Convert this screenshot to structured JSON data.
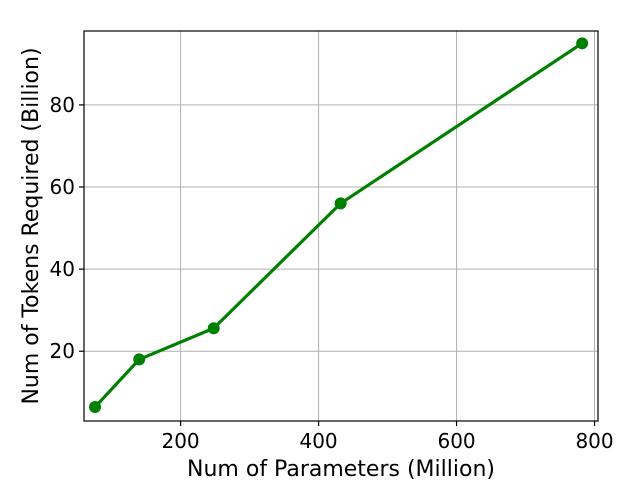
{
  "chart_data": {
    "type": "line",
    "xlabel": "Num of Parameters (Million)",
    "ylabel": "Num of Tokens Required (Billion)",
    "xlim": [
      60,
      805
    ],
    "ylim": [
      3,
      98
    ],
    "xticks": [
      200,
      400,
      600,
      800
    ],
    "yticks": [
      20,
      40,
      60,
      80
    ],
    "xtick_labels": [
      "200",
      "400",
      "600",
      "800"
    ],
    "ytick_labels": [
      "20",
      "40",
      "60",
      "80"
    ],
    "grid": true,
    "series": [
      {
        "color": "#008000",
        "x": [
          76,
          140,
          248,
          432,
          782
        ],
        "y": [
          6.4,
          18,
          25.6,
          56,
          95
        ]
      }
    ]
  }
}
